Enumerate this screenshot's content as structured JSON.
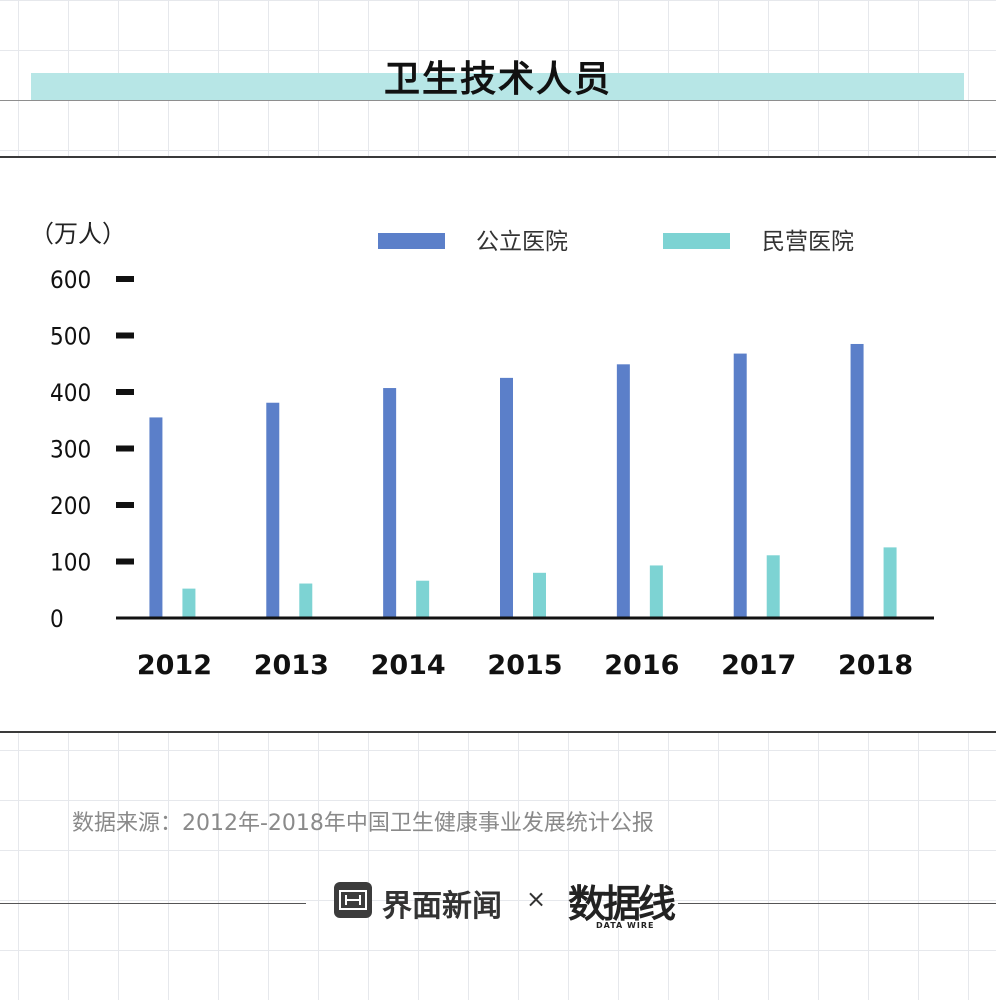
{
  "header": {
    "title": "卫生技术人员"
  },
  "source": {
    "text": "数据来源：2012年-2018年中国卫生健康事业发展统计公报"
  },
  "footer": {
    "brand": "界面新闻",
    "separator": "×",
    "partner": "数据线",
    "partner_sub": "DATA WIRE"
  },
  "colors": {
    "public": "#5b7fc9",
    "private": "#7dd3d3",
    "title_band": "#b7e6e6"
  },
  "chart_data": {
    "type": "bar",
    "title": "卫生技术人员",
    "unit_label": "（万人）",
    "categories": [
      "2012",
      "2013",
      "2014",
      "2015",
      "2016",
      "2017",
      "2018"
    ],
    "series": [
      {
        "name": "公立医院",
        "values": [
          355,
          381,
          407,
          425,
          449,
          468,
          485
        ]
      },
      {
        "name": "民营医院",
        "values": [
          52,
          61,
          66,
          80,
          93,
          111,
          125
        ]
      }
    ],
    "yticks": [
      "0",
      "100",
      "200",
      "300",
      "400",
      "500",
      "600"
    ],
    "ylim": [
      0,
      600
    ],
    "legend_position": "top"
  }
}
